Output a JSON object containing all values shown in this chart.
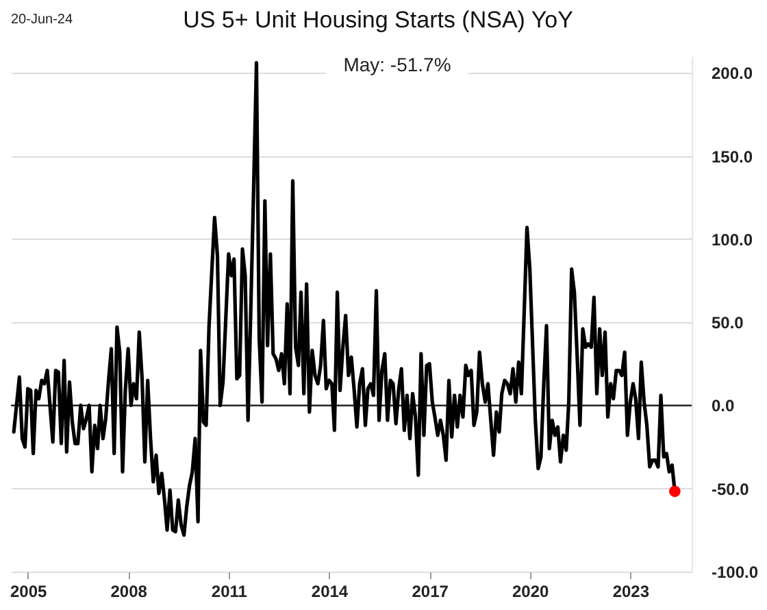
{
  "chart_data": {
    "type": "line",
    "title": "US 5+ Unit Housing Starts (NSA) YoY",
    "annotations": [
      "20-Jun-24",
      "May:    -51.7%"
    ],
    "x": [
      "2004-08",
      "2004-10",
      "2004-11",
      "2004-12",
      "2005-01",
      "2005-02",
      "2005-03",
      "2005-04",
      "2005-05",
      "2005-06",
      "2005-07",
      "2005-08",
      "2005-10",
      "2005-11",
      "2005-12",
      "2006-01",
      "2006-02",
      "2006-03",
      "2006-04",
      "2006-05",
      "2006-06",
      "2006-07",
      "2006-08",
      "2006-09",
      "2006-10",
      "2006-11",
      "2006-12",
      "2007-01",
      "2007-02",
      "2007-03",
      "2007-04",
      "2007-05",
      "2007-06",
      "2007-07",
      "2007-08",
      "2007-09",
      "2007-10",
      "2007-11",
      "2007-12",
      "2008-01",
      "2008-02",
      "2008-03",
      "2008-04",
      "2008-05",
      "2008-06",
      "2008-07",
      "2008-08",
      "2008-09",
      "2008-10",
      "2008-11",
      "2008-12",
      "2009-01",
      "2009-02",
      "2009-03",
      "2009-04",
      "2009-05",
      "2009-06",
      "2009-07",
      "2009-08",
      "2009-09",
      "2009-10",
      "2009-11",
      "2009-12",
      "2010-01",
      "2010-02",
      "2010-03",
      "2010-04",
      "2010-05",
      "2010-06",
      "2010-07",
      "2010-08",
      "2010-09",
      "2010-10",
      "2010-11",
      "2011-01",
      "2011-02",
      "2011-03",
      "2011-04",
      "2011-05",
      "2011-06",
      "2011-07",
      "2011-08",
      "2011-09",
      "2011-10",
      "2011-11",
      "2011-12",
      "2012-01",
      "2012-02",
      "2012-03",
      "2012-04",
      "2012-05",
      "2012-06",
      "2012-07",
      "2012-08",
      "2012-09",
      "2012-10",
      "2012-11",
      "2012-12",
      "2013-01",
      "2013-02",
      "2013-03",
      "2013-04",
      "2013-05",
      "2013-06",
      "2013-07",
      "2013-08",
      "2013-09",
      "2013-10",
      "2013-11",
      "2013-12",
      "2014-01",
      "2014-02",
      "2014-03",
      "2014-04",
      "2014-05",
      "2014-06",
      "2014-07",
      "2014-08",
      "2014-09",
      "2014-10",
      "2014-11",
      "2014-12",
      "2015-01",
      "2015-02",
      "2015-03",
      "2015-04",
      "2015-05",
      "2015-06",
      "2015-07",
      "2015-08",
      "2015-09",
      "2015-10",
      "2015-11",
      "2015-12",
      "2016-01",
      "2016-02",
      "2016-03",
      "2016-04",
      "2016-05",
      "2016-06",
      "2016-07",
      "2016-08",
      "2016-09",
      "2016-10",
      "2016-11",
      "2016-12",
      "2017-01",
      "2017-02",
      "2017-03",
      "2017-04",
      "2017-05",
      "2017-06",
      "2017-07",
      "2017-08",
      "2017-09",
      "2017-10",
      "2017-11",
      "2017-12",
      "2018-01",
      "2018-02",
      "2018-03",
      "2018-04",
      "2018-05",
      "2018-06",
      "2018-07",
      "2018-08",
      "2018-09",
      "2018-10",
      "2018-11",
      "2018-12",
      "2019-01",
      "2019-02",
      "2019-03",
      "2019-04",
      "2019-05",
      "2019-06",
      "2019-07",
      "2019-08",
      "2019-09",
      "2019-10",
      "2019-11",
      "2019-12",
      "2020-01",
      "2020-02",
      "2020-03",
      "2020-04",
      "2020-05",
      "2020-06",
      "2020-07",
      "2020-08",
      "2020-09",
      "2020-10",
      "2020-11",
      "2020-12",
      "2021-01",
      "2021-02",
      "2021-03",
      "2021-04",
      "2021-05",
      "2021-06",
      "2021-07",
      "2021-08",
      "2021-09",
      "2021-10",
      "2021-11",
      "2021-12",
      "2022-01",
      "2022-02",
      "2022-03",
      "2022-04",
      "2022-05",
      "2022-06",
      "2022-07",
      "2022-08",
      "2022-09",
      "2022-10",
      "2022-11",
      "2022-12",
      "2023-01",
      "2023-02",
      "2023-03",
      "2023-04",
      "2023-05",
      "2023-06",
      "2023-07",
      "2023-08",
      "2023-09",
      "2023-10",
      "2023-11",
      "2023-12",
      "2024-01",
      "2024-02",
      "2024-03",
      "2024-04",
      "2024-05"
    ],
    "series": [
      {
        "type": "line",
        "color": "#000000",
        "values": [
          -16,
          17,
          -20,
          -25,
          10,
          9,
          -29,
          9,
          4,
          15,
          13,
          21,
          -22,
          21,
          20,
          -23,
          27,
          -28,
          14,
          -10,
          -23,
          -23,
          0,
          -14,
          -8,
          0,
          -40,
          -12,
          -26,
          0,
          -20,
          -8,
          15,
          34,
          -29,
          47,
          32,
          -40,
          9,
          34,
          0,
          13,
          4,
          44,
          16,
          -34,
          15,
          -20,
          -46,
          -30,
          -53,
          -41,
          -57,
          -75,
          -51,
          -75,
          -76,
          -57,
          -72,
          -78,
          -61,
          -48,
          -40,
          -20,
          -70,
          33,
          -10,
          -12,
          47,
          80,
          113,
          90,
          0,
          14,
          91,
          78,
          88,
          16,
          18,
          94,
          78,
          -9,
          60,
          130,
          206,
          40,
          2,
          123,
          36,
          91,
          31,
          28,
          21,
          31,
          13,
          61,
          7,
          135,
          35,
          24,
          68,
          7,
          73,
          -4,
          33,
          18,
          13,
          24,
          51,
          10,
          15,
          13,
          -15,
          68,
          9,
          35,
          54,
          18,
          29,
          10,
          -13,
          13,
          22,
          -12,
          10,
          13,
          6,
          69,
          -9,
          21,
          31,
          -9,
          15,
          13,
          -11,
          10,
          22,
          -15,
          6,
          -20,
          7,
          -7,
          -42,
          31,
          -18,
          24,
          25,
          2,
          -7,
          -18,
          -9,
          -18,
          -33,
          15,
          -19,
          6,
          -13,
          6,
          -7,
          24,
          18,
          21,
          -12,
          -4,
          32,
          13,
          2,
          13,
          -9,
          -30,
          -4,
          -16,
          7,
          15,
          13,
          7,
          22,
          2,
          26,
          7,
          57,
          107,
          82,
          35,
          -9,
          -38,
          -31,
          13,
          48,
          -26,
          -9,
          -18,
          -13,
          -34,
          -18,
          -27,
          2,
          82,
          68,
          29,
          -12,
          46,
          35,
          37,
          35,
          65,
          7,
          46,
          18,
          44,
          -7,
          13,
          4,
          21,
          21,
          18,
          32,
          -18,
          2,
          13,
          4,
          -20,
          26,
          2,
          -12,
          -37,
          -33,
          -33,
          -37,
          6,
          -31,
          -29,
          -40,
          -36,
          -51.7
        ]
      },
      {
        "type": "scatter",
        "color": "#ff0000",
        "x": [
          "2024-05"
        ],
        "values": [
          -51.7
        ]
      }
    ],
    "xlim": [
      "2004-07",
      "2024-11"
    ],
    "xticks": [
      "2005",
      "2008",
      "2011",
      "2014",
      "2017",
      "2020",
      "2023"
    ],
    "ylim": [
      -100,
      210
    ],
    "yticks": [
      {
        "value": -100,
        "label": "-100.0"
      },
      {
        "value": -50,
        "label": "-50.0"
      },
      {
        "value": 0,
        "label": "0.0"
      },
      {
        "value": 50,
        "label": "50.0"
      },
      {
        "value": 100,
        "label": "100.0"
      },
      {
        "value": 150,
        "label": "150.0"
      },
      {
        "value": 200,
        "label": "200.0"
      }
    ],
    "ref_lines": [
      {
        "axis": "y",
        "value": 0,
        "color": "#000000"
      }
    ],
    "grid": "y"
  }
}
